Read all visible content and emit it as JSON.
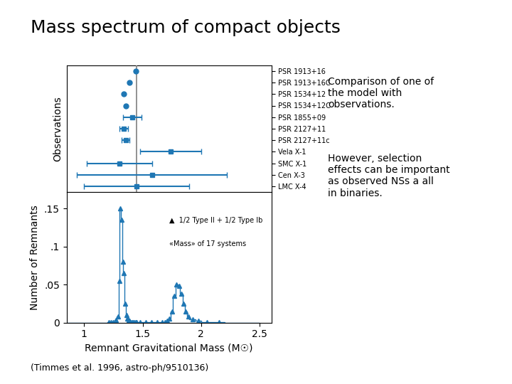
{
  "chart_data": [
    {
      "type": "errorbar",
      "title": "Mass spectrum of compact objects",
      "ylabel": "Observations",
      "categories": [
        "PSR 1913+16",
        "PSR 1913+16C",
        "PSR 1534+12",
        "PSR 1534+12C",
        "PSR 1855+09",
        "PSR 2127+11",
        "PSR 2127+11c",
        "Vela X-1",
        "SMC X-1",
        "Cen X-3",
        "LMC X-4"
      ],
      "values": [
        1.44,
        1.39,
        1.34,
        1.355,
        1.41,
        1.34,
        1.355,
        1.74,
        1.3,
        1.58,
        1.45
      ],
      "xerr": [
        0.0,
        0.0,
        0.0,
        0.0,
        0.08,
        0.035,
        0.035,
        0.26,
        0.28,
        0.64,
        0.45
      ],
      "mean_line": {
        "value": 1.45,
        "label": "«Mass» of 17 systems"
      },
      "xlim": [
        0.85,
        2.6
      ],
      "xticks": [
        1,
        1.5,
        2,
        2.5
      ],
      "tick_labels": "y",
      "annotations": [
        "Comparison of one of\nthe model with\nobservations.",
        "However, selection\neffects can be important\nas observed NSs a all\nin binaries.",
        "(Timmes et al. 1996, astro-ph/9510136)"
      ]
    },
    {
      "type": "histogram",
      "xlabel": "Remnant Gravitational Mass (M☉)",
      "ylabel": "Number of Remnants",
      "bins": [
        0.85,
        1.0,
        1.05,
        1.1,
        1.15,
        1.2,
        1.22,
        1.24,
        1.26,
        1.28,
        1.295,
        1.305,
        1.315,
        1.325,
        1.335,
        1.345,
        1.355,
        1.365,
        1.375,
        1.385,
        1.395,
        1.405,
        1.415,
        1.425,
        1.435,
        1.445,
        1.455,
        1.5,
        1.55,
        1.6,
        1.65,
        1.68,
        1.7,
        1.72,
        1.74,
        1.76,
        1.78,
        1.8,
        1.82,
        1.84,
        1.86,
        1.88,
        1.9,
        1.95,
        2.0,
        2.1,
        2.2,
        2.3,
        2.5
      ],
      "values": [
        0.0,
        0.0,
        0.0,
        0.0,
        0.0,
        0.001,
        0.001,
        0.001,
        0.003,
        0.008,
        0.055,
        0.15,
        0.135,
        0.08,
        0.065,
        0.025,
        0.01,
        0.005,
        0.003,
        0.002,
        0.001,
        0.001,
        0.001,
        0.001,
        0.001,
        0.001,
        0.001,
        0.001,
        0.001,
        0.001,
        0.001,
        0.001,
        0.002,
        0.005,
        0.015,
        0.035,
        0.05,
        0.048,
        0.038,
        0.025,
        0.015,
        0.008,
        0.004,
        0.002,
        0.001,
        0.001,
        0.0,
        0.0
      ],
      "marker": "^",
      "xlim": [
        0.85,
        2.6
      ],
      "xticks": [
        1,
        1.5,
        2,
        2.5
      ],
      "ylim": [
        0,
        0.172
      ],
      "yticks": [
        0,
        {
          "value": 0.05,
          "label": ".05"
        },
        {
          "value": 0.1,
          "label": ".1"
        },
        {
          "value": 0.15,
          "label": ".15"
        }
      ],
      "annotations": [
        "▲  1/2 Type II + 1/2 Type Ib"
      ]
    }
  ]
}
